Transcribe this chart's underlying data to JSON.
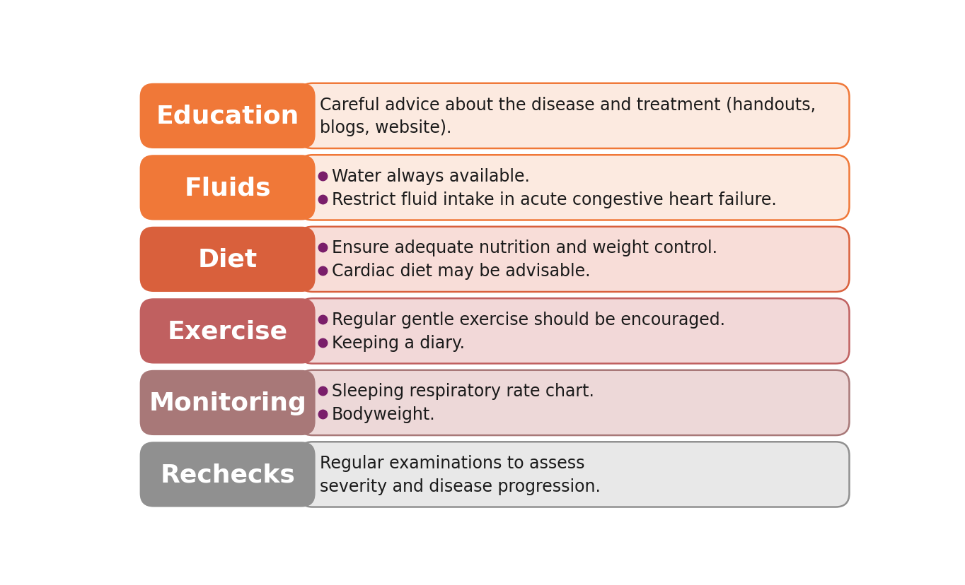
{
  "rows": [
    {
      "label": "Education",
      "label_color": "#F07838",
      "bg_color": "#FCEAE0",
      "border_color": "#F07838",
      "text_lines": [
        "Careful advice about the disease and treatment (handouts,",
        "blogs, website)."
      ],
      "bullets": false
    },
    {
      "label": "Fluids",
      "label_color": "#F07838",
      "bg_color": "#FCEAE0",
      "border_color": "#F07838",
      "text_lines": [
        "Water always available.",
        "Restrict fluid intake in acute congestive heart failure."
      ],
      "bullets": true
    },
    {
      "label": "Diet",
      "label_color": "#D9603C",
      "bg_color": "#F8DDD8",
      "border_color": "#D9603C",
      "text_lines": [
        "Ensure adequate nutrition and weight control.",
        "Cardiac diet may be advisable."
      ],
      "bullets": true
    },
    {
      "label": "Exercise",
      "label_color": "#C06060",
      "bg_color": "#F2D8D8",
      "border_color": "#C06060",
      "text_lines": [
        "Regular gentle exercise should be encouraged.",
        "Keeping a diary."
      ],
      "bullets": true
    },
    {
      "label": "Monitoring",
      "label_color": "#A87878",
      "bg_color": "#EDD8D8",
      "border_color": "#A87878",
      "text_lines": [
        "Sleeping respiratory rate chart.",
        "Bodyweight."
      ],
      "bullets": true
    },
    {
      "label": "Rechecks",
      "label_color": "#909090",
      "bg_color": "#E8E8E8",
      "border_color": "#909090",
      "text_lines": [
        "Regular examinations to assess",
        "severity and disease progression."
      ],
      "bullets": false
    }
  ],
  "bullet_color": "#7A1E6A",
  "text_color": "#1A1A1A",
  "label_text_color": "#FFFFFF",
  "background_color": "#FFFFFF",
  "fig_width": 13.64,
  "fig_height": 8.29,
  "dpi": 100
}
